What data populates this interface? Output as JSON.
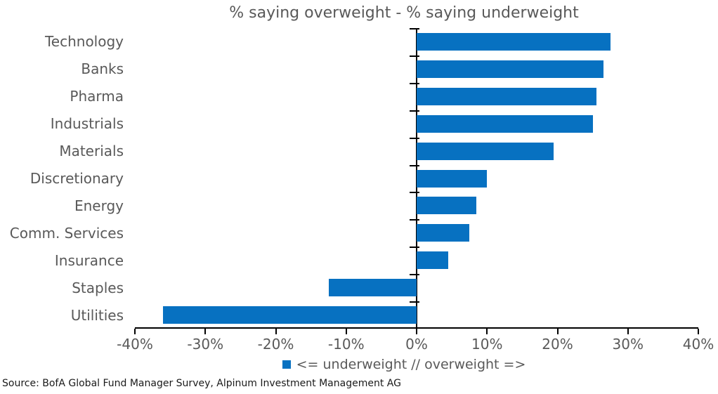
{
  "chart_data": {
    "type": "bar",
    "orientation": "horizontal",
    "title": "% saying overweight - % saying underweight",
    "categories": [
      "Technology",
      "Banks",
      "Pharma",
      "Industrials",
      "Materials",
      "Discretionary",
      "Energy",
      "Comm. Services",
      "Insurance",
      "Staples",
      "Utilities"
    ],
    "values": [
      27.5,
      26.5,
      25.5,
      25,
      19.5,
      10,
      8.5,
      7.5,
      4.5,
      -12.5,
      -36
    ],
    "xlim": [
      -40,
      40
    ],
    "x_ticks": [
      -40,
      -30,
      -20,
      -10,
      0,
      10,
      20,
      30,
      40
    ],
    "x_tick_labels": [
      "-40%",
      "-30%",
      "-20%",
      "-10%",
      "0%",
      "10%",
      "20%",
      "30%",
      "40%"
    ],
    "grid": false,
    "legend_position": "bottom",
    "legend_label": "<= underweight // overweight =>",
    "bar_color": "#0771c1",
    "axis_color": "#000000",
    "text_color": "#595959"
  },
  "source_note": "Source: BofA Global Fund Manager Survey, Alpinum Investment Management AG"
}
